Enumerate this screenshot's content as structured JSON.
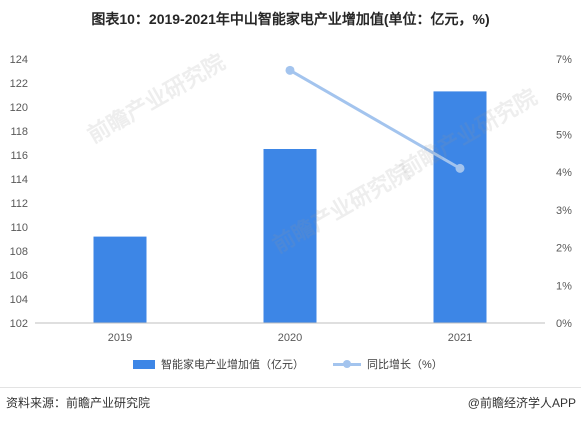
{
  "chart_data": {
    "type": "bar",
    "title": "图表10：2019-2021年中山智能家电产业增加值(单位：亿元，%)",
    "categories": [
      "2019",
      "2020",
      "2021"
    ],
    "series": [
      {
        "name": "智能家电产业增加值（亿元）",
        "type": "bar",
        "axis": "left",
        "values": [
          109.2,
          116.5,
          121.3
        ],
        "color": "#3d86e6"
      },
      {
        "name": "同比增长（%）",
        "type": "line",
        "axis": "right",
        "values": [
          null,
          6.7,
          4.1
        ],
        "color": "#a3c4ee"
      }
    ],
    "y_left": {
      "min": 102,
      "max": 124,
      "ticks": [
        "102",
        "104",
        "106",
        "108",
        "110",
        "112",
        "114",
        "116",
        "118",
        "120",
        "122",
        "124"
      ]
    },
    "y_right": {
      "min": 0,
      "max": 7,
      "ticks": [
        "0%",
        "1%",
        "2%",
        "3%",
        "4%",
        "5%",
        "6%",
        "7%"
      ]
    },
    "grid": false,
    "legend": "bottom-center",
    "axis_color": "#bfbfbf",
    "tick_color": "#595959"
  },
  "watermark": "前瞻产业研究院",
  "source": "资料来源：前瞻产业研究院",
  "credit": "@前瞻经济学人APP"
}
